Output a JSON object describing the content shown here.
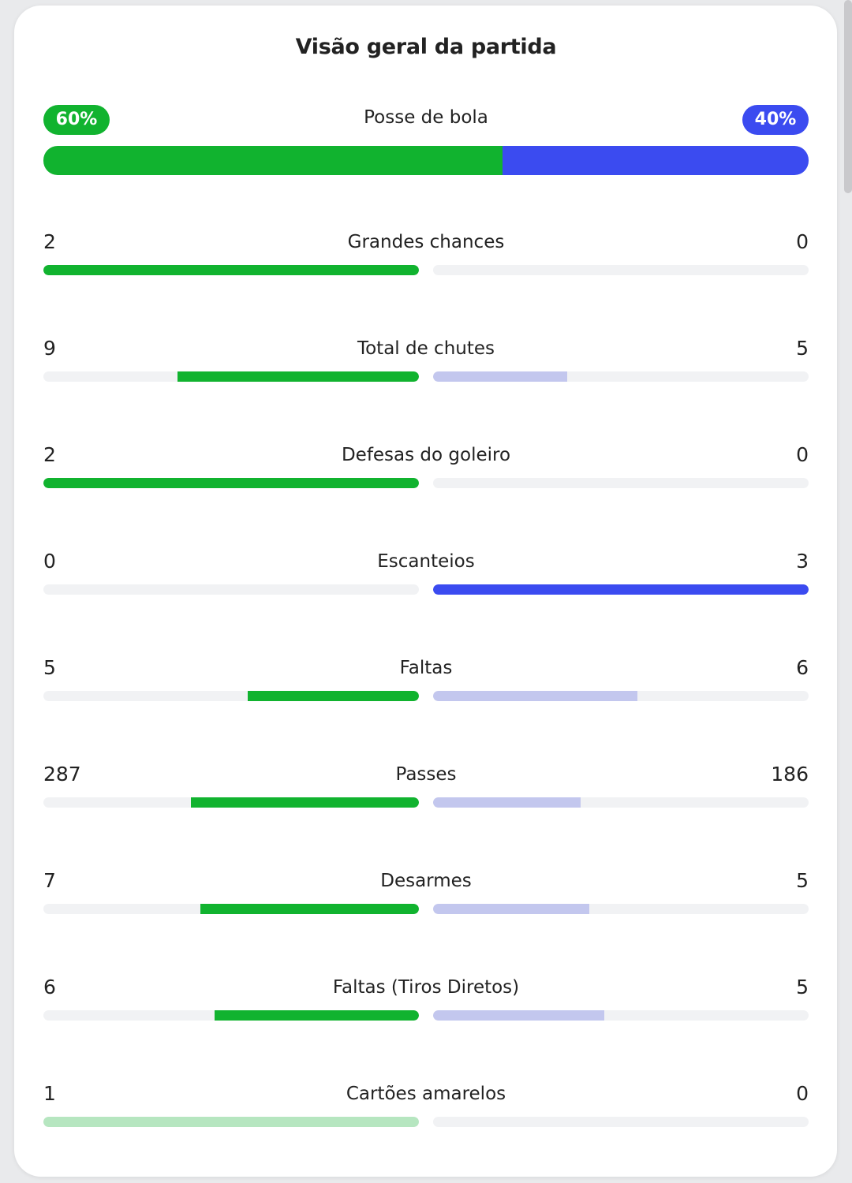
{
  "title": "Visão geral da partida",
  "colors": {
    "home": "#11b32f",
    "away": "#3b4bf0",
    "away_light": "#c3c7ee",
    "home_light": "#b6e6c0",
    "track": "#f1f2f4"
  },
  "possession": {
    "label": "Posse de bola",
    "home": "60%",
    "away": "40%",
    "home_fraction": 0.6
  },
  "stats": [
    {
      "label": "Grandes chances",
      "home": "2",
      "away": "0",
      "home_fraction": 1.0,
      "away_fraction": 0.0,
      "highlight": "home"
    },
    {
      "label": "Total de chutes",
      "home": "9",
      "away": "5",
      "home_fraction": 0.643,
      "away_fraction": 0.357,
      "highlight": "home"
    },
    {
      "label": "Defesas do goleiro",
      "home": "2",
      "away": "0",
      "home_fraction": 1.0,
      "away_fraction": 0.0,
      "highlight": "home"
    },
    {
      "label": "Escanteios",
      "home": "0",
      "away": "3",
      "home_fraction": 0.0,
      "away_fraction": 1.0,
      "highlight": "away"
    },
    {
      "label": "Faltas",
      "home": "5",
      "away": "6",
      "home_fraction": 0.455,
      "away_fraction": 0.545,
      "highlight": "home"
    },
    {
      "label": "Passes",
      "home": "287",
      "away": "186",
      "home_fraction": 0.607,
      "away_fraction": 0.393,
      "highlight": "home"
    },
    {
      "label": "Desarmes",
      "home": "7",
      "away": "5",
      "home_fraction": 0.583,
      "away_fraction": 0.417,
      "highlight": "home"
    },
    {
      "label": "Faltas (Tiros Diretos)",
      "home": "6",
      "away": "5",
      "home_fraction": 0.545,
      "away_fraction": 0.455,
      "highlight": "home"
    },
    {
      "label": "Cartões amarelos",
      "home": "1",
      "away": "0",
      "home_fraction": 1.0,
      "away_fraction": 0.0,
      "highlight": "home_light"
    }
  ]
}
